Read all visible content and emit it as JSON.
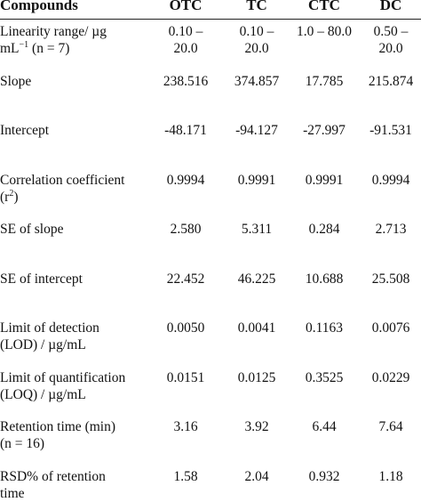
{
  "table": {
    "header": [
      "Compounds",
      "OTC",
      "TC",
      "CTC",
      "DC"
    ],
    "rows": [
      {
        "label": [
          [
            "Linearity range/ µg"
          ],
          [
            "mL",
            {
              "sup": "−1"
            },
            " (n = 7)"
          ]
        ],
        "values": [
          "0.10 – 20.0",
          "0.10 – 20.0",
          "1.0 – 80.0",
          "0.50 – 20.0"
        ]
      },
      {
        "label": [
          [
            "Slope"
          ]
        ],
        "values": [
          "238.516",
          "374.857",
          "17.785",
          "215.874"
        ]
      },
      {
        "label": [
          [
            "Intercept"
          ]
        ],
        "values": [
          "-48.171",
          "-94.127",
          "-27.997",
          "-91.531"
        ]
      },
      {
        "label": [
          [
            "Correlation coefficient"
          ],
          [
            "(r",
            {
              "sup": "2"
            },
            ")"
          ]
        ],
        "values": [
          "0.9994",
          "0.9991",
          "0.9991",
          "0.9994"
        ]
      },
      {
        "label": [
          [
            "SE of slope"
          ]
        ],
        "values": [
          "2.580",
          "5.311",
          "0.284",
          "2.713"
        ]
      },
      {
        "label": [
          [
            "SE of intercept"
          ]
        ],
        "values": [
          "22.452",
          "46.225",
          "10.688",
          "25.508"
        ]
      },
      {
        "label": [
          [
            "Limit of detection"
          ],
          [
            "(LOD) / µg/mL"
          ]
        ],
        "values": [
          "0.0050",
          "0.0041",
          "0.1163",
          "0.0076"
        ]
      },
      {
        "label": [
          [
            "Limit of quantification"
          ],
          [
            "(LOQ) / µg/mL"
          ]
        ],
        "values": [
          "0.0151",
          "0.0125",
          "0.3525",
          "0.0229"
        ]
      },
      {
        "label": [
          [
            "Retention time (min)"
          ],
          [
            "(n = 16)"
          ]
        ],
        "values": [
          "3.16",
          "3.92",
          "6.44",
          "7.64"
        ]
      },
      {
        "label": [
          [
            "RSD% of retention"
          ],
          [
            "time"
          ]
        ],
        "values": [
          "1.58",
          "2.04",
          "0.932",
          "1.18"
        ]
      }
    ]
  }
}
